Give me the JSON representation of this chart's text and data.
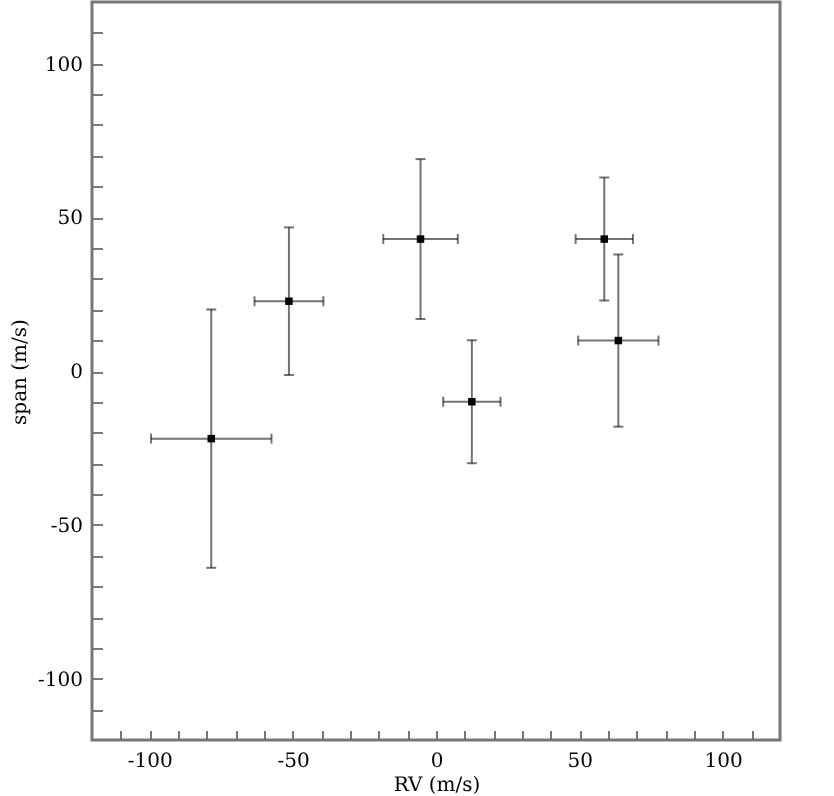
{
  "chart_data": {
    "type": "scatter",
    "xlabel": "RV (m/s)",
    "ylabel": "span (m/s)",
    "x": [
      -78.4,
      -51.3,
      -5.4,
      12.5,
      58.7,
      63.6
    ],
    "series": [
      {
        "color": "#000000",
        "values": [
          -22,
          22.7,
          42.9,
          -10,
          42.9,
          9.9
        ],
        "errors": [
          42,
          24,
          26,
          20,
          20,
          28
        ],
        "xerrors": [
          21,
          12,
          13,
          10,
          10,
          14
        ]
      }
    ],
    "xlim": [
      -120,
      120
    ],
    "ylim": [
      -120,
      120
    ],
    "xticks": [
      {
        "value": -110,
        "label": null
      },
      -100,
      {
        "value": -90,
        "label": null
      },
      {
        "value": -80,
        "label": null
      },
      {
        "value": -70,
        "label": null
      },
      {
        "value": -60,
        "label": null
      },
      -50,
      {
        "value": -40,
        "label": null
      },
      {
        "value": -30,
        "label": null
      },
      {
        "value": -20,
        "label": null
      },
      {
        "value": -10,
        "label": null
      },
      0,
      {
        "value": 10,
        "label": null
      },
      {
        "value": 20,
        "label": null
      },
      {
        "value": 30,
        "label": null
      },
      {
        "value": 40,
        "label": null
      },
      50,
      {
        "value": 60,
        "label": null
      },
      {
        "value": 70,
        "label": null
      },
      {
        "value": 80,
        "label": null
      },
      {
        "value": 90,
        "label": null
      },
      100,
      {
        "value": 110,
        "label": null
      }
    ],
    "yticks": [
      {
        "value": -110,
        "label": null
      },
      -100,
      {
        "value": -90,
        "label": null
      },
      {
        "value": -80,
        "label": null
      },
      {
        "value": -70,
        "label": null
      },
      {
        "value": -60,
        "label": null
      },
      -50,
      {
        "value": -40,
        "label": null
      },
      {
        "value": -30,
        "label": null
      },
      {
        "value": -20,
        "label": null
      },
      {
        "value": -10,
        "label": null
      },
      0,
      {
        "value": 10,
        "label": null
      },
      {
        "value": 20,
        "label": null
      },
      {
        "value": 30,
        "label": null
      },
      {
        "value": 40,
        "label": null
      },
      50,
      {
        "value": 60,
        "label": null
      },
      {
        "value": 70,
        "label": null
      },
      {
        "value": 80,
        "label": null
      },
      {
        "value": 90,
        "label": null
      },
      100,
      {
        "value": 110,
        "label": null
      }
    ],
    "marker": "square",
    "grid": false
  }
}
